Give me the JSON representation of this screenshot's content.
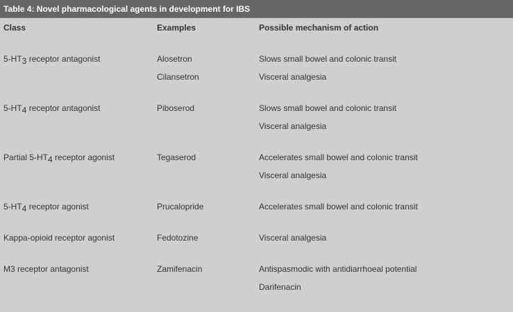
{
  "table": {
    "title": "Table 4: Novel pharmacological agents in development for IBS",
    "headers": {
      "class": "Class",
      "examples": "Examples",
      "mechanism": "Possible mechanism of action"
    },
    "rows": [
      {
        "class_prefix": "5-HT",
        "class_sub": "3",
        "class_suffix": " receptor antagonist",
        "examples": [
          "Alosetron",
          "Cilansetron"
        ],
        "mechanisms": [
          "Slows small bowel and colonic transit",
          "Visceral analgesia"
        ]
      },
      {
        "class_prefix": "5-HT",
        "class_sub": "4",
        "class_suffix": " receptor antagonist",
        "examples": [
          "Piboserod"
        ],
        "mechanisms": [
          "Slows small bowel and colonic transit",
          "Visceral analgesia"
        ]
      },
      {
        "class_prefix": "Partial 5-HT",
        "class_sub": "4",
        "class_suffix": " receptor agonist",
        "examples": [
          "Tegaserod"
        ],
        "mechanisms": [
          "Accelerates small bowel and colonic transit",
          "Visceral analgesia"
        ]
      },
      {
        "class_prefix": "5-HT",
        "class_sub": "4",
        "class_suffix": " receptor agonist",
        "examples": [
          "Prucalopride"
        ],
        "mechanisms": [
          "Accelerates small bowel and colonic transit"
        ]
      },
      {
        "class_prefix": "Kappa-opioid receptor agonist",
        "class_sub": "",
        "class_suffix": "",
        "examples": [
          "Fedotozine"
        ],
        "mechanisms": [
          "Visceral analgesia"
        ]
      },
      {
        "class_prefix": "M3 receptor antagonist",
        "class_sub": "",
        "class_suffix": "",
        "examples": [
          "Zamifenacin"
        ],
        "mechanisms": [
          "Antispasmodic with antidiarrhoeal potential",
          "Darifenacin"
        ]
      }
    ]
  }
}
